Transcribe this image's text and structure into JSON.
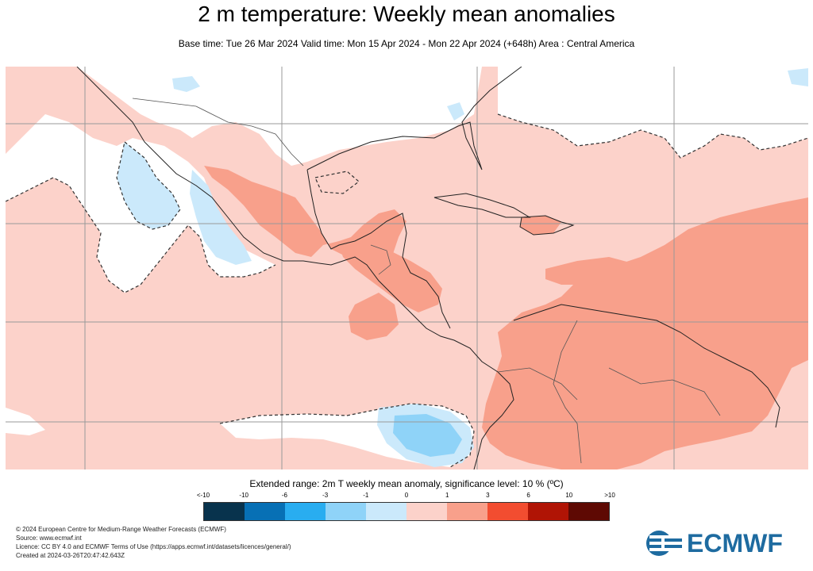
{
  "header": {
    "title": "2 m temperature: Weekly mean anomalies",
    "subtitle": "Base time: Tue 26 Mar 2024 Valid time: Mon 15 Apr 2024 - Mon 22 Apr 2024 (+648h) Area : Central America"
  },
  "legend": {
    "title": "Extended range: 2m T weekly mean anomaly, significance level: 10 % (ºC)",
    "ticks": [
      "<-10",
      "-10",
      "-6",
      "-3",
      "-1",
      "0",
      "1",
      "3",
      "6",
      "10",
      ">10"
    ],
    "colors": [
      "#08334d",
      "#0770b5",
      "#29adf0",
      "#8fd3f8",
      "#cbe9fb",
      "#ffffff",
      "#fcd2ca",
      "#f8a08b",
      "#f24d30",
      "#b01405",
      "#5e0903"
    ]
  },
  "map": {
    "region": "Central America",
    "colors": {
      "mild_warm": "#fcd2ca",
      "moderate_warm": "#f8a08b",
      "mild_cold": "#cbe9fb",
      "moderate_cold": "#8fd3f8",
      "not_significant": "#ffffff"
    }
  },
  "footer": {
    "lines": [
      "© 2024 European Centre for Medium-Range Weather Forecasts (ECMWF)",
      "Source: www.ecmwf.int",
      "Licence: CC BY 4.0 and ECMWF Terms of Use (https://apps.ecmwf.int/datasets/licences/general/)",
      "Created at 2024-03-26T20:47:42.643Z"
    ]
  },
  "logo": {
    "text": "ECMWF",
    "color": "#1e6ba0"
  }
}
